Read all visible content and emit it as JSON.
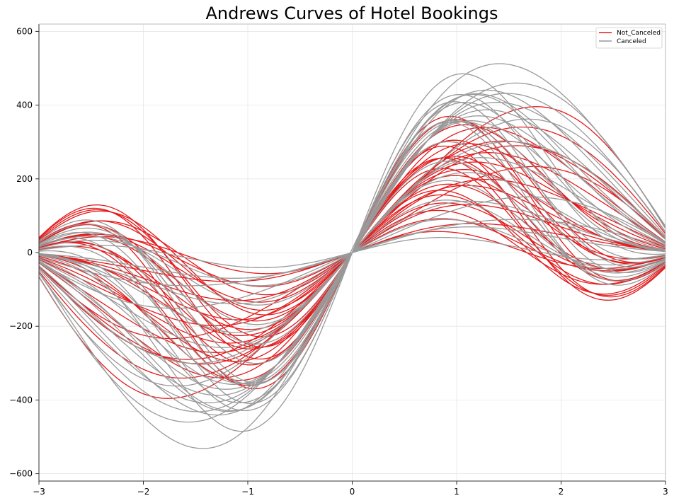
{
  "chart_data": {
    "type": "line",
    "title": "Andrews Curves of Hotel Bookings",
    "xlabel": "",
    "ylabel": "",
    "xlim": [
      -3,
      3
    ],
    "ylim": [
      -620,
      620
    ],
    "x_ticks": [
      -3,
      -2,
      -1,
      0,
      1,
      2,
      3
    ],
    "x_tick_labels": [
      "−3",
      "−2",
      "−1",
      "0",
      "1",
      "2",
      "3"
    ],
    "y_ticks": [
      -600,
      -400,
      -200,
      0,
      200,
      400,
      600
    ],
    "y_tick_labels": [
      "−600",
      "−400",
      "−200",
      "0",
      "200",
      "400",
      "600"
    ],
    "grid": true,
    "legend_position": "top-right",
    "curve_form": "f(t) = x1/sqrt(2) + x2*sin(t) + x3*cos(t) + x4*sin(2t) + x5*cos(2t)",
    "series": [
      {
        "name": "Not_Canceled",
        "color": "#e41a1c",
        "curves": [
          {
            "x1": 0,
            "x2": 388,
            "x3": 0,
            "x4": -40,
            "x5": 0
          },
          {
            "x1": 0,
            "x2": 340,
            "x3": 0,
            "x4": -10,
            "x5": 0
          },
          {
            "x1": 0,
            "x2": 300,
            "x3": 0,
            "x4": 20,
            "x5": 0
          },
          {
            "x1": 0,
            "x2": 260,
            "x3": 0,
            "x4": 40,
            "x5": 0
          },
          {
            "x1": 0,
            "x2": 220,
            "x3": 0,
            "x4": 60,
            "x5": 0
          },
          {
            "x1": 0,
            "x2": 180,
            "x3": 0,
            "x4": 80,
            "x5": 0
          },
          {
            "x1": 0,
            "x2": 140,
            "x3": 0,
            "x4": 100,
            "x5": 0
          },
          {
            "x1": 0,
            "x2": 100,
            "x3": 0,
            "x4": 110,
            "x5": 0
          },
          {
            "x1": 0,
            "x2": 60,
            "x3": 0,
            "x4": 90,
            "x5": 0
          },
          {
            "x1": 0,
            "x2": 30,
            "x3": 0,
            "x4": 70,
            "x5": 0
          },
          {
            "x1": 0,
            "x2": 10,
            "x3": 0,
            "x4": 50,
            "x5": 0
          },
          {
            "x1": 0,
            "x2": 250,
            "x3": 0,
            "x4": 90,
            "x5": 0
          },
          {
            "x1": 0,
            "x2": 200,
            "x3": 0,
            "x4": 150,
            "x5": 0
          },
          {
            "x1": 0,
            "x2": 160,
            "x3": 0,
            "x4": 180,
            "x5": 0
          },
          {
            "x1": 0,
            "x2": 120,
            "x3": 0,
            "x4": 200,
            "x5": 0
          },
          {
            "x1": 0,
            "x2": 80,
            "x3": 0,
            "x4": 170,
            "x5": 0
          },
          {
            "x1": 0,
            "x2": 40,
            "x3": 0,
            "x4": 140,
            "x5": 0
          },
          {
            "x1": 0,
            "x2": 280,
            "x3": 0,
            "x4": 120,
            "x5": 0
          },
          {
            "x1": 0,
            "x2": 230,
            "x3": 0,
            "x4": -20,
            "x5": 0
          },
          {
            "x1": 0,
            "x2": 190,
            "x3": 0,
            "x4": 30,
            "x5": 0
          },
          {
            "x1": 0,
            "x2": 150,
            "x3": 0,
            "x4": 60,
            "x5": 0
          },
          {
            "x1": 0,
            "x2": 110,
            "x3": 0,
            "x4": 40,
            "x5": 0
          },
          {
            "x1": 0,
            "x2": 70,
            "x3": 0,
            "x4": 20,
            "x5": 0
          },
          {
            "x1": 0,
            "x2": 320,
            "x3": 0,
            "x4": 60,
            "x5": 0
          },
          {
            "x1": 0,
            "x2": 210,
            "x3": 0,
            "x4": 210,
            "x5": 0
          },
          {
            "x1": 0,
            "x2": 170,
            "x3": 0,
            "x4": 130,
            "x5": 0
          },
          {
            "x1": 0,
            "x2": 130,
            "x3": 0,
            "x4": 160,
            "x5": 0
          },
          {
            "x1": 0,
            "x2": 90,
            "x3": 0,
            "x4": 190,
            "x5": 0
          },
          {
            "x1": 0,
            "x2": 50,
            "x3": 0,
            "x4": 120,
            "x5": 0
          },
          {
            "x1": 0,
            "x2": 20,
            "x3": 0,
            "x4": 100,
            "x5": 0
          },
          {
            "x1": 0,
            "x2": 290,
            "x3": 0,
            "x4": 0,
            "x5": 0
          },
          {
            "x1": 0,
            "x2": 245,
            "x3": 0,
            "x4": 170,
            "x5": 0
          }
        ]
      },
      {
        "name": "Canceled",
        "color": "#999999",
        "curves": [
          {
            "x1": 0,
            "x2": 460,
            "x3": 0,
            "x4": 0,
            "x5": 0
          },
          {
            "x1": 0,
            "x2": 430,
            "x3": 0,
            "x4": 20,
            "x5": 0
          },
          {
            "x1": 0,
            "x2": 400,
            "x3": 0,
            "x4": 40,
            "x5": 0
          },
          {
            "x1": 0,
            "x2": 370,
            "x3": 0,
            "x4": 60,
            "x5": 0
          },
          {
            "x1": 0,
            "x2": 340,
            "x3": 0,
            "x4": 80,
            "x5": 0
          },
          {
            "x1": 0,
            "x2": 310,
            "x3": 0,
            "x4": 100,
            "x5": 0
          },
          {
            "x1": 0,
            "x2": 280,
            "x3": 0,
            "x4": 130,
            "x5": 0
          },
          {
            "x1": 0,
            "x2": 250,
            "x3": 0,
            "x4": 160,
            "x5": 0
          },
          {
            "x1": 0,
            "x2": 220,
            "x3": 0,
            "x4": 190,
            "x5": 0
          },
          {
            "x1": 0,
            "x2": 190,
            "x3": 0,
            "x4": 210,
            "x5": 0
          },
          {
            "x1": 0,
            "x2": 160,
            "x3": 0,
            "x4": 180,
            "x5": 0
          },
          {
            "x1": 0,
            "x2": 130,
            "x3": 0,
            "x4": 150,
            "x5": 0
          },
          {
            "x1": 0,
            "x2": 100,
            "x3": 0,
            "x4": 120,
            "x5": 0
          },
          {
            "x1": 0,
            "x2": 70,
            "x3": 0,
            "x4": 90,
            "x5": 0
          },
          {
            "x1": 0,
            "x2": 40,
            "x3": 0,
            "x4": 60,
            "x5": 0
          },
          {
            "x1": 0,
            "x2": 15,
            "x3": 0,
            "x4": 30,
            "x5": 0
          },
          {
            "x1": 0,
            "x2": 360,
            "x3": 0,
            "x4": -20,
            "x5": 0
          },
          {
            "x1": 0,
            "x2": 300,
            "x3": 0,
            "x4": 10,
            "x5": 0
          },
          {
            "x1": 0,
            "x2": 240,
            "x3": 0,
            "x4": 50,
            "x5": 0
          },
          {
            "x1": 0,
            "x2": 180,
            "x3": 0,
            "x4": 70,
            "x5": 0
          },
          {
            "x1": 0,
            "x2": 120,
            "x3": 0,
            "x4": 40,
            "x5": 0
          },
          {
            "x1": 0,
            "x2": 60,
            "x3": 0,
            "x4": 20,
            "x5": 0
          },
          {
            "x1": 0,
            "x2": 420,
            "x3": 0,
            "x4": 70,
            "x5": 0
          },
          {
            "x1": 0,
            "x2": 380,
            "x3": 0,
            "x4": 110,
            "x5": 0
          },
          {
            "x1": 0,
            "x2": 330,
            "x3": 0,
            "x4": 140,
            "x5": 0
          },
          {
            "x1": 0,
            "x2": 270,
            "x3": 0,
            "x4": 200,
            "x5": 0
          },
          {
            "x1": 0,
            "x2": 320,
            "x3": 0,
            "x4": 175,
            "x5": 0
          },
          {
            "x1": 0,
            "x2": 390,
            "x3": 0,
            "x4": 100,
            "x5": 0
          },
          {
            "x1": 0,
            "x2": 150,
            "x3": 0,
            "x4": -10,
            "x5": 0
          },
          {
            "x1": 0,
            "x2": 90,
            "x3": 0,
            "x4": 0,
            "x5": 0
          },
          {
            "x1": 0,
            "x2": 516,
            "x3": 0,
            "x4": 40,
            "x5": 10
          },
          {
            "x1": 0,
            "x2": 380,
            "x3": 0,
            "x4": 180,
            "x5": 0
          }
        ]
      }
    ]
  }
}
